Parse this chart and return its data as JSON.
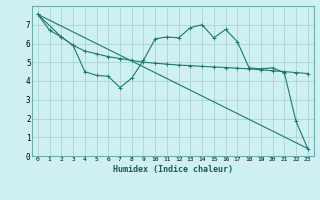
{
  "background_color": "#cff0f0",
  "grid_color": "#aad4d4",
  "line_color": "#1a7a6e",
  "xlabel": "Humidex (Indice chaleur)",
  "xlim": [
    -0.5,
    23.5
  ],
  "ylim": [
    0,
    8
  ],
  "xticks": [
    0,
    1,
    2,
    3,
    4,
    5,
    6,
    7,
    8,
    9,
    10,
    11,
    12,
    13,
    14,
    15,
    16,
    17,
    18,
    19,
    20,
    21,
    22,
    23
  ],
  "yticks": [
    0,
    1,
    2,
    3,
    4,
    5,
    6,
    7
  ],
  "line1_x": [
    0,
    1,
    2,
    3,
    4,
    5,
    6,
    7,
    8,
    9,
    10,
    11,
    12,
    13,
    14,
    15,
    16,
    17,
    18,
    19,
    20,
    21,
    22,
    23
  ],
  "line1_y": [
    7.55,
    6.7,
    6.35,
    5.9,
    5.6,
    5.45,
    5.3,
    5.2,
    5.1,
    5.0,
    4.95,
    4.9,
    4.85,
    4.82,
    4.78,
    4.75,
    4.72,
    4.68,
    4.65,
    4.6,
    4.55,
    4.5,
    4.45,
    4.4
  ],
  "line2_x": [
    0,
    2,
    3,
    4,
    5,
    6,
    7,
    8,
    9,
    10,
    11,
    12,
    13,
    14,
    15,
    16,
    17,
    18,
    19,
    20,
    21,
    22,
    23
  ],
  "line2_y": [
    7.55,
    6.35,
    5.9,
    4.5,
    4.3,
    4.25,
    3.65,
    4.15,
    5.1,
    6.25,
    6.35,
    6.3,
    6.85,
    7.0,
    6.3,
    6.75,
    6.1,
    4.7,
    4.65,
    4.7,
    4.45,
    1.85,
    0.4
  ],
  "line3_x": [
    0,
    23
  ],
  "line3_y": [
    7.55,
    0.4
  ]
}
